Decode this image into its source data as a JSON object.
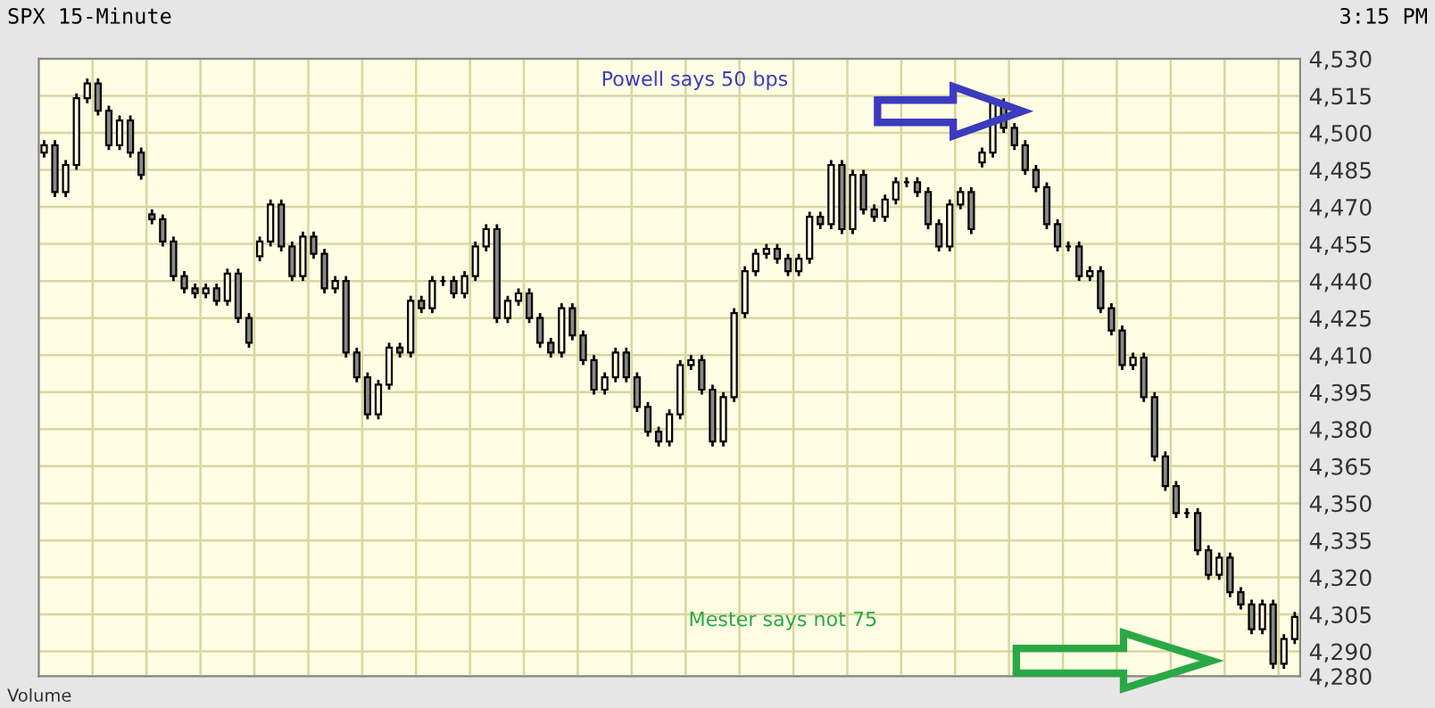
{
  "chart_data": {
    "type": "candlestick",
    "title": "SPX 15-Minute",
    "subtitle": "3:15 PM",
    "annotations": [
      "Powell says 50 bps",
      "Mester says not 75",
      "Volume"
    ],
    "categories": [
      null,
      null,
      null,
      null,
      null,
      null,
      null,
      null,
      null,
      null,
      null,
      null,
      null,
      null,
      null,
      null,
      null,
      null,
      null,
      null,
      null,
      null,
      null,
      null,
      null,
      null,
      null,
      null,
      null,
      null,
      null,
      null,
      null,
      null,
      null,
      null,
      null,
      null,
      null,
      null,
      null,
      null,
      null,
      null,
      null,
      null,
      null,
      null,
      null,
      null,
      null,
      null,
      null,
      null,
      null,
      null,
      null,
      null,
      null,
      null,
      null,
      null,
      null,
      null,
      null,
      null,
      null,
      null,
      null,
      null,
      null,
      null,
      null,
      null,
      null,
      null,
      null,
      null,
      null,
      null,
      null,
      null,
      null,
      null,
      null,
      null,
      null,
      null,
      null,
      null,
      null,
      null,
      null,
      null,
      null,
      null,
      null,
      null,
      null,
      null,
      null,
      null,
      null,
      null,
      null,
      null,
      null,
      null,
      null,
      null,
      null,
      null,
      null,
      null,
      null,
      null,
      null
    ],
    "color": "#000000",
    "ohlc": [
      [
        4492,
        4497,
        4490,
        4495
      ],
      [
        4495,
        4497,
        4474,
        4476
      ],
      [
        4476,
        4489,
        4474,
        4487
      ],
      [
        4487,
        4516,
        4485,
        4514
      ],
      [
        4514,
        4522,
        4512,
        4520
      ],
      [
        4520,
        4522,
        4507,
        4509
      ],
      [
        4509,
        4511,
        4493,
        4495
      ],
      [
        4495,
        4507,
        4493,
        4505
      ],
      [
        4505,
        4507,
        4490,
        4492
      ],
      [
        4492,
        4494,
        4481,
        4483
      ],
      [
        4467,
        4469,
        4463,
        4465
      ],
      [
        4465,
        4467,
        4454,
        4456
      ],
      [
        4456,
        4458,
        4440,
        4442
      ],
      [
        4442,
        4444,
        4435,
        4437
      ],
      [
        4437,
        4439,
        4433,
        4435
      ],
      [
        4435,
        4439,
        4433,
        4437
      ],
      [
        4437,
        4439,
        4430,
        4432
      ],
      [
        4432,
        4445,
        4430,
        4443
      ],
      [
        4443,
        4445,
        4423,
        4425
      ],
      [
        4425,
        4427,
        4413,
        4415
      ],
      [
        4450,
        4458,
        4448,
        4456
      ],
      [
        4456,
        4473,
        4454,
        4471
      ],
      [
        4471,
        4473,
        4452,
        4454
      ],
      [
        4454,
        4456,
        4440,
        4442
      ],
      [
        4442,
        4460,
        4440,
        4458
      ],
      [
        4458,
        4460,
        4449,
        4451
      ],
      [
        4451,
        4453,
        4435,
        4437
      ],
      [
        4437,
        4442,
        4435,
        4440
      ],
      [
        4440,
        4442,
        4409,
        4411
      ],
      [
        4411,
        4413,
        4399,
        4401
      ],
      [
        4401,
        4403,
        4384,
        4386
      ],
      [
        4386,
        4400,
        4384,
        4398
      ],
      [
        4398,
        4415,
        4396,
        4413
      ],
      [
        4413,
        4415,
        4409,
        4411
      ],
      [
        4411,
        4434,
        4409,
        4432
      ],
      [
        4432,
        4434,
        4427,
        4429
      ],
      [
        4429,
        4442,
        4427,
        4440
      ],
      [
        4440,
        4442,
        4438,
        4440
      ],
      [
        4440,
        4442,
        4433,
        4435
      ],
      [
        4435,
        4444,
        4433,
        4442
      ],
      [
        4442,
        4456,
        4440,
        4454
      ],
      [
        4454,
        4463,
        4452,
        4461
      ],
      [
        4461,
        4463,
        4423,
        4425
      ],
      [
        4425,
        4434,
        4423,
        4432
      ],
      [
        4432,
        4437,
        4430,
        4435
      ],
      [
        4435,
        4437,
        4423,
        4425
      ],
      [
        4425,
        4427,
        4413,
        4415
      ],
      [
        4415,
        4417,
        4409,
        4411
      ],
      [
        4411,
        4431,
        4409,
        4429
      ],
      [
        4429,
        4431,
        4416,
        4418
      ],
      [
        4418,
        4420,
        4406,
        4408
      ],
      [
        4408,
        4410,
        4394,
        4396
      ],
      [
        4396,
        4403,
        4394,
        4401
      ],
      [
        4401,
        4413,
        4399,
        4411
      ],
      [
        4411,
        4413,
        4399,
        4401
      ],
      [
        4401,
        4403,
        4387,
        4389
      ],
      [
        4389,
        4391,
        4377,
        4379
      ],
      [
        4379,
        4381,
        4373,
        4375
      ],
      [
        4375,
        4388,
        4373,
        4386
      ],
      [
        4386,
        4408,
        4384,
        4406
      ],
      [
        4406,
        4410,
        4404,
        4408
      ],
      [
        4408,
        4410,
        4394,
        4396
      ],
      [
        4396,
        4398,
        4373,
        4375
      ],
      [
        4375,
        4395,
        4373,
        4393
      ],
      [
        4393,
        4429,
        4391,
        4427
      ],
      [
        4427,
        4446,
        4425,
        4444
      ],
      [
        4444,
        4453,
        4442,
        4451
      ],
      [
        4451,
        4455,
        4449,
        4453
      ],
      [
        4453,
        4455,
        4447,
        4449
      ],
      [
        4449,
        4451,
        4442,
        4444
      ],
      [
        4444,
        4451,
        4442,
        4449
      ],
      [
        4449,
        4468,
        4447,
        4466
      ],
      [
        4466,
        4468,
        4461,
        4463
      ],
      [
        4463,
        4489,
        4461,
        4487
      ],
      [
        4487,
        4489,
        4459,
        4461
      ],
      [
        4461,
        4485,
        4459,
        4483
      ],
      [
        4483,
        4485,
        4467,
        4469
      ],
      [
        4469,
        4471,
        4464,
        4466
      ],
      [
        4466,
        4475,
        4464,
        4473
      ],
      [
        4473,
        4482,
        4471,
        4480
      ],
      [
        4480,
        4482,
        4478,
        4480
      ],
      [
        4480,
        4482,
        4474,
        4476
      ],
      [
        4476,
        4478,
        4461,
        4463
      ],
      [
        4463,
        4465,
        4452,
        4454
      ],
      [
        4454,
        4473,
        4452,
        4471
      ],
      [
        4471,
        4478,
        4469,
        4476
      ],
      [
        4476,
        4478,
        4459,
        4461
      ],
      [
        4488,
        4494,
        4486,
        4492
      ],
      [
        4492,
        4514,
        4490,
        4512
      ],
      [
        4512,
        4514,
        4500,
        4502
      ],
      [
        4502,
        4504,
        4493,
        4495
      ],
      [
        4495,
        4497,
        4483,
        4485
      ],
      [
        4485,
        4487,
        4476,
        4478
      ],
      [
        4478,
        4480,
        4461,
        4463
      ],
      [
        4463,
        4465,
        4452,
        4454
      ],
      [
        4454,
        4456,
        4452,
        4454
      ],
      [
        4454,
        4456,
        4440,
        4442
      ],
      [
        4442,
        4446,
        4440,
        4444
      ],
      [
        4444,
        4446,
        4427,
        4429
      ],
      [
        4429,
        4431,
        4418,
        4420
      ],
      [
        4420,
        4422,
        4404,
        4406
      ],
      [
        4406,
        4411,
        4404,
        4409
      ],
      [
        4409,
        4411,
        4391,
        4393
      ],
      [
        4393,
        4395,
        4367,
        4369
      ],
      [
        4369,
        4371,
        4355,
        4357
      ],
      [
        4357,
        4359,
        4344,
        4346
      ],
      [
        4346,
        4348,
        4344,
        4346
      ],
      [
        4346,
        4348,
        4329,
        4331
      ],
      [
        4331,
        4333,
        4319,
        4321
      ],
      [
        4321,
        4330,
        4319,
        4328
      ],
      [
        4328,
        4330,
        4312,
        4314
      ],
      [
        4314,
        4316,
        4307,
        4309
      ],
      [
        4309,
        4311,
        4297,
        4299
      ],
      [
        4299,
        4311,
        4297,
        4309
      ],
      [
        4309,
        4311,
        4283,
        4285
      ],
      [
        4285,
        4297,
        4283,
        4295
      ],
      [
        4295,
        4306,
        4293,
        4304
      ]
    ],
    "ylim": [
      4280,
      4530
    ],
    "yticks": [
      {
        "value": 4280,
        "label": "4,280"
      },
      {
        "value": 4290,
        "label": "4,290"
      },
      {
        "value": 4305,
        "label": "4,305"
      },
      {
        "value": 4320,
        "label": "4,320"
      },
      {
        "value": 4335,
        "label": "4,335"
      },
      {
        "value": 4350,
        "label": "4,350"
      },
      {
        "value": 4365,
        "label": "4,365"
      },
      {
        "value": 4380,
        "label": "4,380"
      },
      {
        "value": 4395,
        "label": "4,395"
      },
      {
        "value": 4410,
        "label": "4,410"
      },
      {
        "value": 4425,
        "label": "4,425"
      },
      {
        "value": 4440,
        "label": "4,440"
      },
      {
        "value": 4455,
        "label": "4,455"
      },
      {
        "value": 4470,
        "label": "4,470"
      },
      {
        "value": 4485,
        "label": "4,485"
      },
      {
        "value": 4500,
        "label": "4,500"
      },
      {
        "value": 4515,
        "label": "4,515"
      },
      {
        "value": 4530,
        "label": "4,530"
      }
    ],
    "tick_labels": "y",
    "grid": true
  }
}
